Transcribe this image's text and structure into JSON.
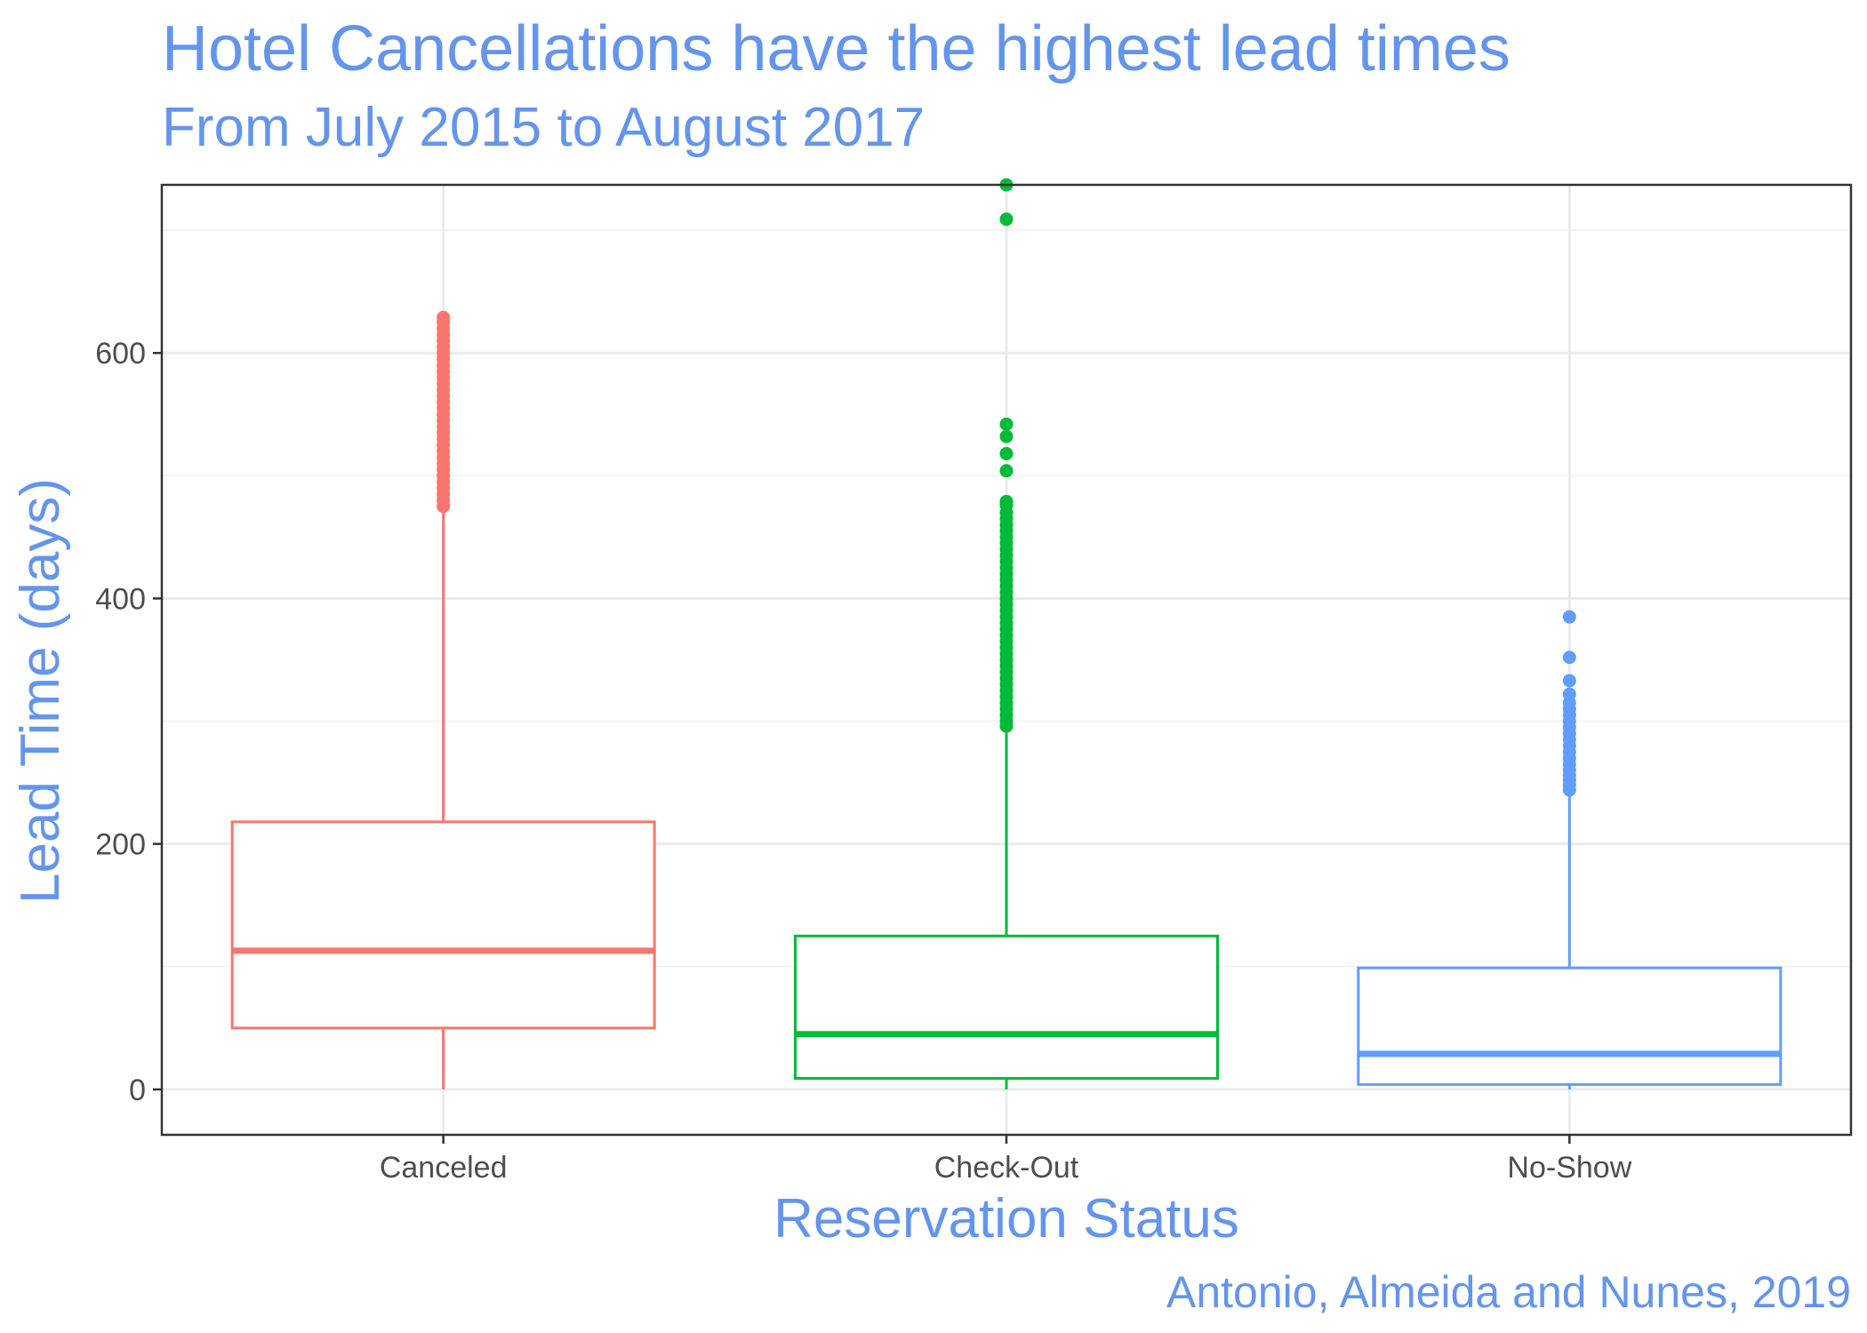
{
  "chart_data": {
    "type": "box",
    "title": "Hotel Cancellations have the highest lead times",
    "subtitle": "From July 2015 to August 2017",
    "caption": "Antonio, Almeida and Nunes, 2019",
    "xlabel": "Reservation Status",
    "ylabel": "Lead Time (days)",
    "ylim": [
      -37,
      737
    ],
    "yticks": [
      0,
      200,
      400,
      600
    ],
    "grid": true,
    "legend": "none",
    "categories": [
      "Canceled",
      "Check-Out",
      "No-Show"
    ],
    "colors": [
      "#F8766D",
      "#00BA38",
      "#619CFF"
    ],
    "series": [
      {
        "category": "Canceled",
        "min": 0,
        "q1": 50,
        "median": 113,
        "q3": 218,
        "whisker_high": 472,
        "outliers": [
          475,
          480,
          485,
          490,
          495,
          500,
          505,
          510,
          515,
          520,
          525,
          530,
          535,
          540,
          545,
          550,
          555,
          560,
          565,
          570,
          575,
          580,
          585,
          590,
          595,
          600,
          605,
          610,
          615,
          620,
          625,
          629
        ]
      },
      {
        "category": "Check-Out",
        "min": 0,
        "q1": 9,
        "median": 45,
        "q3": 125,
        "whisker_high": 293,
        "outliers": [
          296,
          300,
          305,
          310,
          315,
          320,
          325,
          330,
          335,
          340,
          345,
          350,
          355,
          360,
          365,
          370,
          375,
          380,
          385,
          390,
          395,
          400,
          405,
          410,
          415,
          420,
          425,
          430,
          435,
          440,
          445,
          450,
          455,
          460,
          465,
          470,
          476,
          479,
          504,
          518,
          532,
          542,
          709,
          737
        ]
      },
      {
        "category": "No-Show",
        "min": 0,
        "q1": 4,
        "median": 29,
        "q3": 99,
        "whisker_high": 243,
        "outliers": [
          244,
          248,
          252,
          256,
          260,
          265,
          270,
          275,
          280,
          285,
          290,
          295,
          300,
          305,
          310,
          315,
          322,
          333,
          352,
          385
        ]
      }
    ]
  }
}
